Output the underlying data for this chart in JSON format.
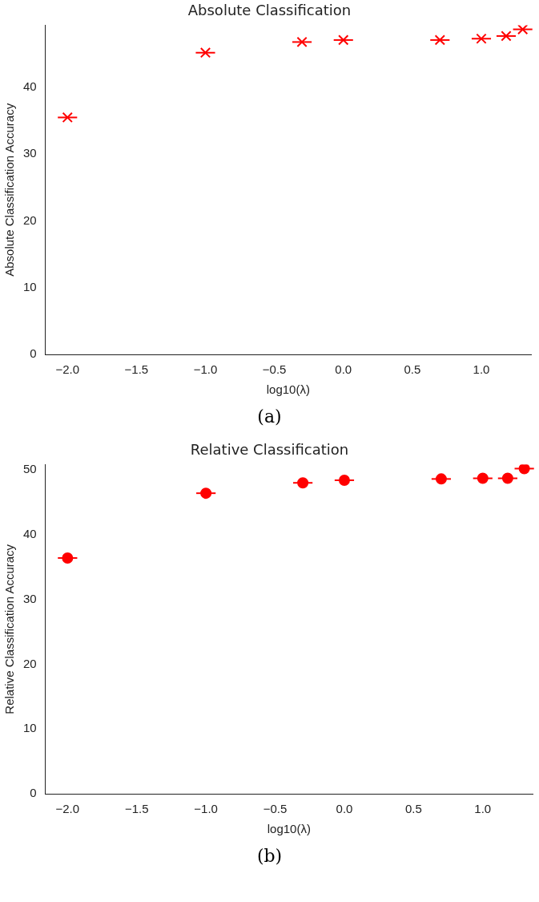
{
  "chart_data": [
    {
      "type": "scatter",
      "title": "Absolute Classification",
      "xlabel": "log10(λ)",
      "ylabel": "Absolute Classification Accuracy",
      "x": [
        -2,
        -1,
        -0.3,
        0,
        0.7,
        1,
        1.18,
        1.3
      ],
      "series": [
        {
          "color": "#ff0000",
          "values": [
            35.5,
            45.2,
            46.8,
            47.1,
            47.1,
            47.3,
            47.7,
            48.7
          ],
          "xerrors": [
            0.07,
            0.07,
            0.07,
            0.07,
            0.07,
            0.07,
            0.07,
            0.07
          ]
        }
      ],
      "marker": "cross",
      "xlim": [
        -2.16,
        1.36
      ],
      "xticks": [
        {
          "value": -2,
          "label": "−2.0"
        },
        {
          "value": -1.5,
          "label": "−1.5"
        },
        {
          "value": -1,
          "label": "−1.0"
        },
        {
          "value": -0.5,
          "label": "−0.5"
        },
        {
          "value": 0,
          "label": "0.0"
        },
        {
          "value": 0.5,
          "label": "0.5"
        },
        {
          "value": 1,
          "label": "1.0"
        }
      ],
      "ylim": [
        0,
        49.3
      ],
      "yticks": [
        0,
        10,
        20,
        30,
        40
      ],
      "grid": false,
      "legend": false,
      "annotations": [
        "(a)"
      ]
    },
    {
      "type": "scatter",
      "title": "Relative Classification",
      "xlabel": "log10(λ)",
      "ylabel": "Relative Classification Accuracy",
      "x": [
        -2,
        -1,
        -0.3,
        0,
        0.7,
        1,
        1.18,
        1.3
      ],
      "series": [
        {
          "color": "#ff0000",
          "values": [
            36.4,
            46.4,
            48.0,
            48.4,
            48.6,
            48.7,
            48.7,
            50.2
          ],
          "xerrors": [
            0.07,
            0.07,
            0.07,
            0.07,
            0.07,
            0.07,
            0.07,
            0.07
          ]
        }
      ],
      "marker": "circle",
      "xlim": [
        -2.16,
        1.36
      ],
      "xticks": [
        {
          "value": -2,
          "label": "−2.0"
        },
        {
          "value": -1.5,
          "label": "−1.5"
        },
        {
          "value": -1,
          "label": "−1.0"
        },
        {
          "value": -0.5,
          "label": "−0.5"
        },
        {
          "value": 0,
          "label": "0.0"
        },
        {
          "value": 0.5,
          "label": "0.5"
        },
        {
          "value": 1,
          "label": "1.0"
        }
      ],
      "ylim": [
        0,
        50.8
      ],
      "yticks": [
        0,
        10,
        20,
        30,
        40,
        50
      ],
      "grid": false,
      "legend": false,
      "annotations": [
        "(b)"
      ]
    }
  ]
}
